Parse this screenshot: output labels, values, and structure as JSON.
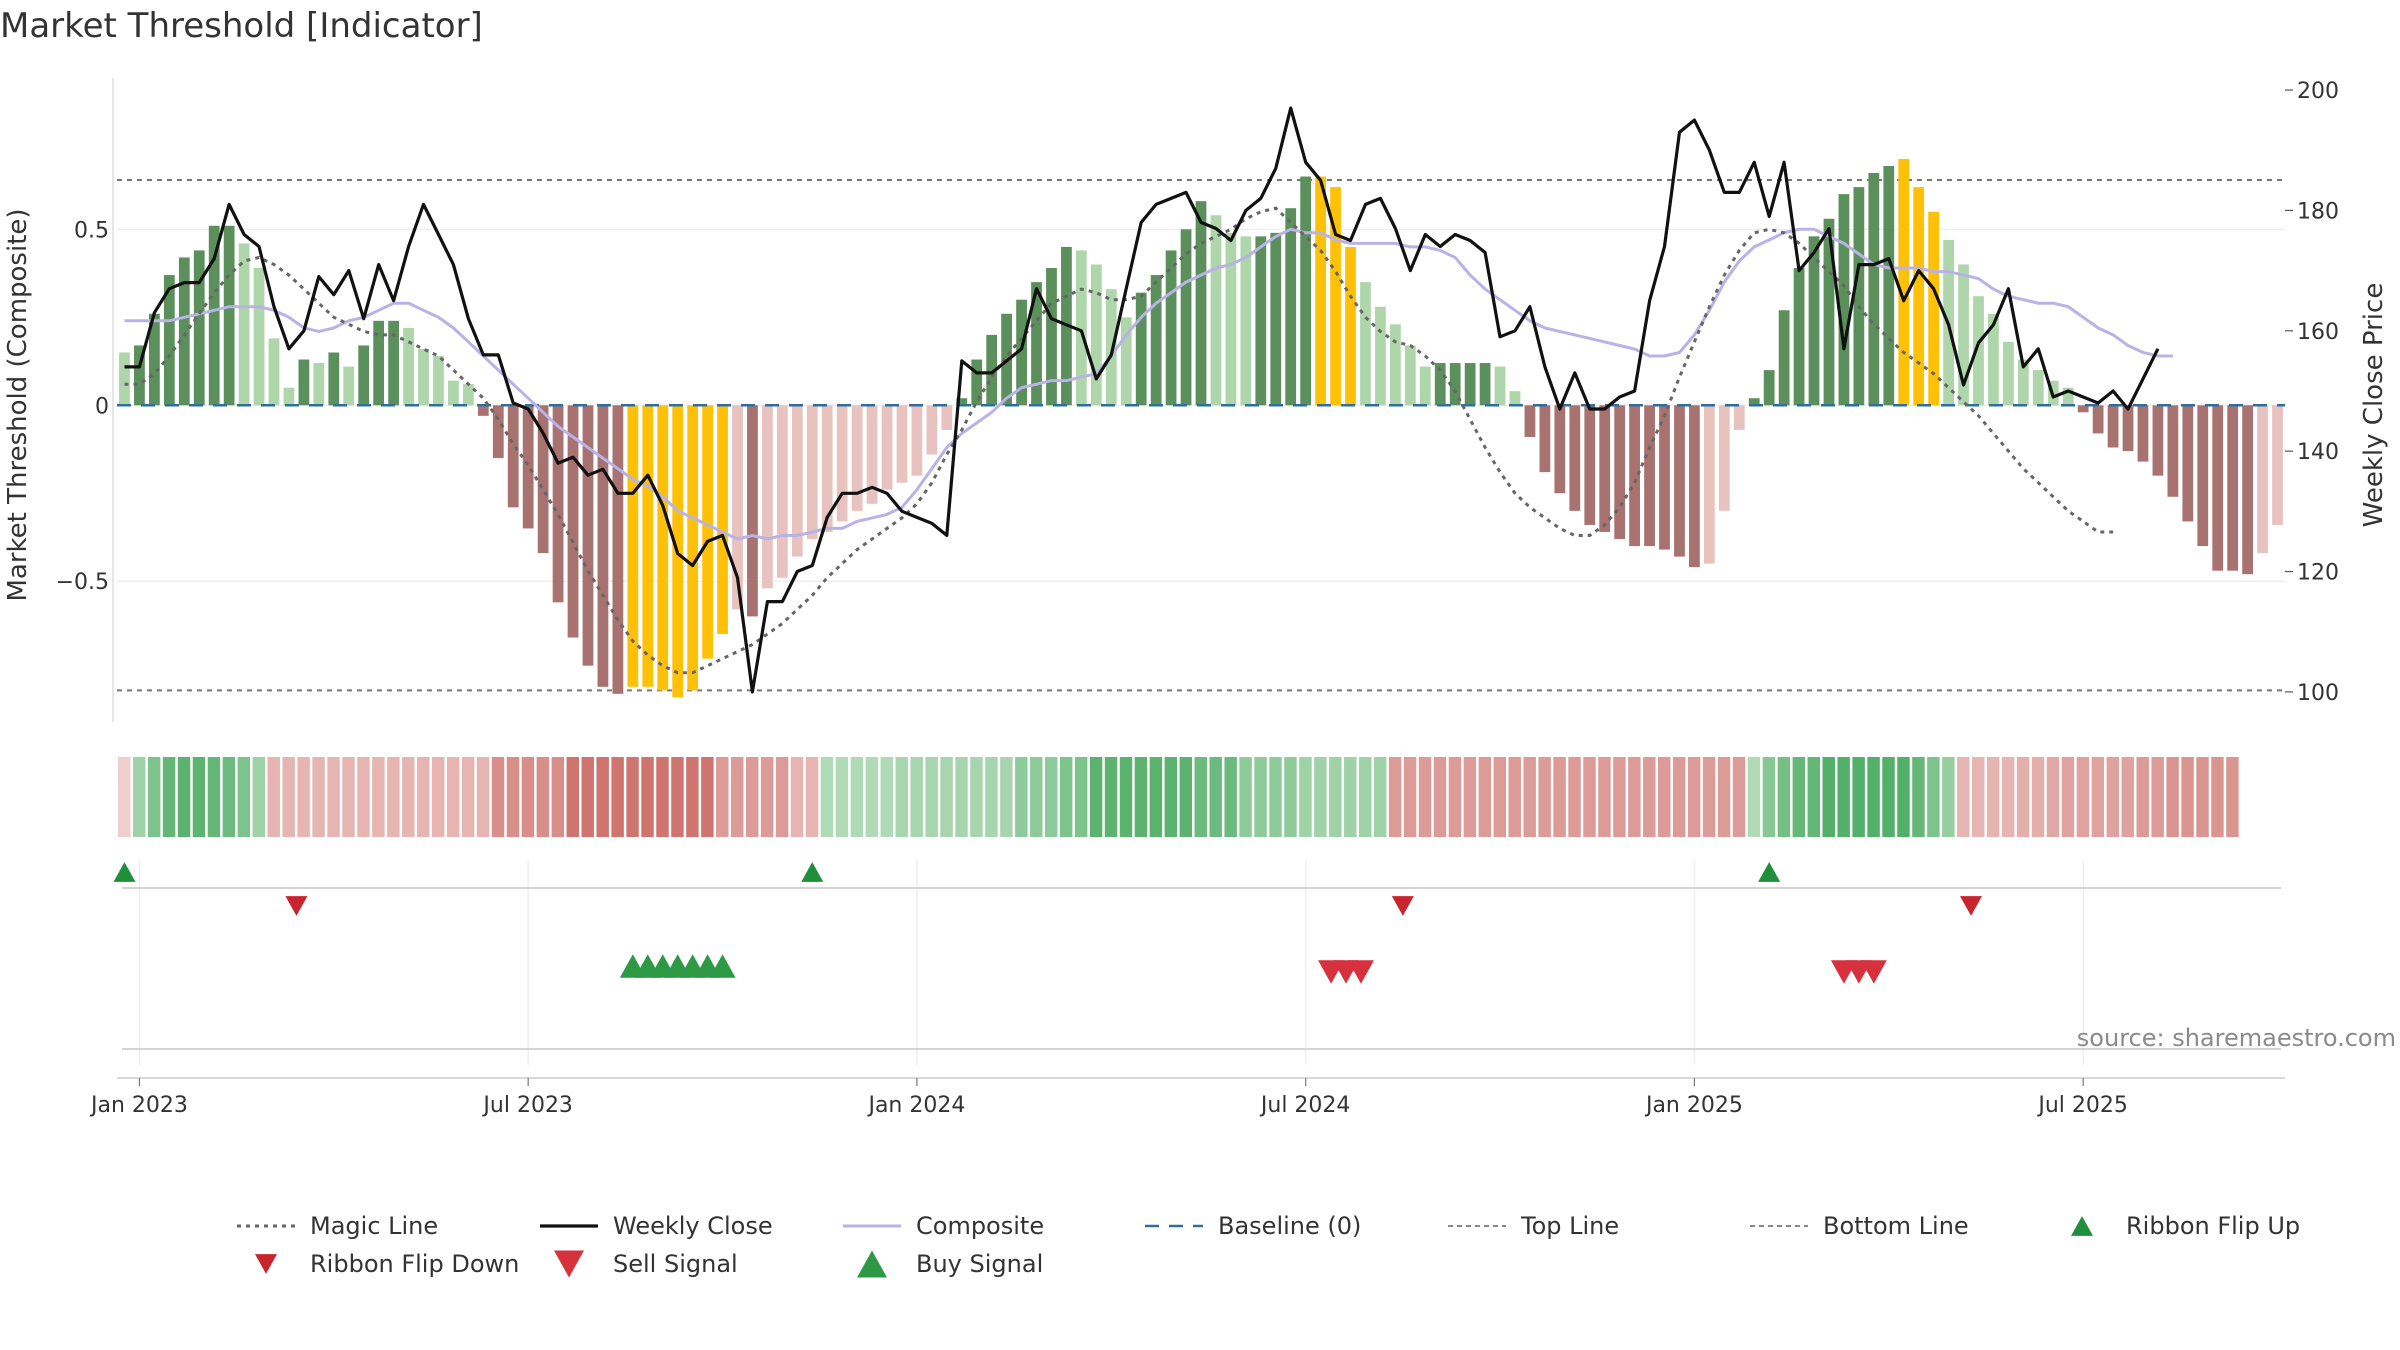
{
  "title": "Market Threshold [Indicator]",
  "source": "source: sharemaestro.com",
  "colors": {
    "strong_positive": "#5b8f5b",
    "weak_positive": "#aed6aa",
    "strong_negative": "#a87270",
    "weak_negative": "#e8c2be",
    "extreme": "#ffc107",
    "close": "#111111",
    "composite": "#b9b2e6",
    "magic": "#666666",
    "baseline": "#2f6f9f",
    "threshold": "#777777",
    "buy": "#2e9944",
    "sell": "#d6313c",
    "flip_up": "#1f8f3a",
    "flip_down": "#c9252e"
  },
  "chart_data": {
    "type": "bar",
    "ylabel": "Market Threshold (Composite)",
    "y2label": "Weekly Close Price",
    "ylim": [
      -0.9,
      0.93
    ],
    "y2lim": [
      95,
      202
    ],
    "yticks": [
      {
        "value": 0.5,
        "label": "0.5"
      },
      {
        "value": 0,
        "label": "0"
      },
      {
        "value": -0.5,
        "label": "−0.5"
      }
    ],
    "y2ticks": [
      {
        "value": 200,
        "label": "200"
      },
      {
        "value": 180,
        "label": "180"
      },
      {
        "value": 160,
        "label": "160"
      },
      {
        "value": 140,
        "label": "140"
      },
      {
        "value": 120,
        "label": "120"
      },
      {
        "value": 100,
        "label": "100"
      }
    ],
    "xticks": [
      {
        "week": 1.5,
        "label": "Jan 2023"
      },
      {
        "week": 27.5,
        "label": "Jul 2023"
      },
      {
        "week": 53.5,
        "label": "Jan 2024"
      },
      {
        "week": 79.5,
        "label": "Jul 2024"
      },
      {
        "week": 105.5,
        "label": "Jan 2025"
      },
      {
        "week": 131.5,
        "label": "Jul 2025"
      }
    ],
    "grid": true,
    "top_line": 0.64,
    "bottom_line": -0.81,
    "baseline": 0,
    "bars": [
      0.15,
      0.17,
      0.26,
      0.37,
      0.42,
      0.44,
      0.51,
      0.51,
      0.46,
      0.39,
      0.19,
      0.05,
      0.13,
      0.12,
      0.15,
      0.11,
      0.17,
      0.24,
      0.24,
      0.22,
      0.16,
      0.14,
      0.07,
      0.06,
      -0.03,
      -0.15,
      -0.29,
      -0.35,
      -0.42,
      -0.56,
      -0.66,
      -0.74,
      -0.8,
      -0.82,
      -0.8,
      -0.8,
      -0.81,
      -0.83,
      -0.81,
      -0.72,
      -0.65,
      -0.58,
      -0.6,
      -0.52,
      -0.49,
      -0.43,
      -0.38,
      -0.36,
      -0.33,
      -0.3,
      -0.28,
      -0.24,
      -0.22,
      -0.2,
      -0.14,
      -0.07,
      0.02,
      0.13,
      0.2,
      0.26,
      0.3,
      0.35,
      0.39,
      0.45,
      0.44,
      0.4,
      0.33,
      0.25,
      0.32,
      0.37,
      0.44,
      0.5,
      0.58,
      0.54,
      0.49,
      0.48,
      0.48,
      0.49,
      0.56,
      0.65,
      0.65,
      0.62,
      0.45,
      0.35,
      0.28,
      0.23,
      0.17,
      0.11,
      0.12,
      0.12,
      0.12,
      0.12,
      0.11,
      0.04,
      -0.09,
      -0.19,
      -0.25,
      -0.3,
      -0.34,
      -0.36,
      -0.38,
      -0.4,
      -0.4,
      -0.41,
      -0.43,
      -0.46,
      -0.45,
      -0.3,
      -0.07,
      0.02,
      0.1,
      0.27,
      0.39,
      0.48,
      0.53,
      0.6,
      0.62,
      0.66,
      0.68,
      0.7,
      0.62,
      0.55,
      0.47,
      0.4,
      0.31,
      0.26,
      0.18,
      0.13,
      0.1,
      0.07,
      0.05,
      -0.02,
      -0.08,
      -0.12,
      -0.13,
      -0.16,
      -0.2,
      -0.26,
      -0.33,
      -0.4,
      -0.47,
      -0.47,
      -0.48,
      -0.42,
      -0.34
    ],
    "close": [
      154,
      154,
      163,
      167,
      168,
      168,
      172,
      181,
      176,
      174,
      164,
      157,
      160,
      169,
      166,
      170,
      162,
      171,
      165,
      174,
      181,
      176,
      171,
      162,
      156,
      156,
      148,
      147,
      143,
      138,
      139,
      136,
      137,
      133,
      133,
      136,
      131,
      123,
      121,
      125,
      126,
      119,
      100,
      115,
      115,
      120,
      121,
      129,
      133,
      133,
      134,
      133,
      130,
      129,
      128,
      126,
      155,
      153,
      153,
      155,
      157,
      167,
      162,
      161,
      160,
      152,
      156,
      167,
      178,
      181,
      182,
      183,
      178,
      177,
      175,
      180,
      182,
      187,
      197,
      188,
      185,
      176,
      175,
      181,
      182,
      177,
      170,
      176,
      174,
      176,
      175,
      173,
      159,
      160,
      164,
      154,
      147,
      153,
      147,
      147,
      149,
      150,
      165,
      174,
      193,
      195,
      190,
      183,
      183,
      188,
      179,
      188,
      170,
      173,
      177,
      157,
      171,
      171,
      172,
      165,
      170,
      167,
      161,
      151,
      158,
      161,
      167,
      154,
      157,
      149,
      150,
      149,
      148,
      150,
      147,
      152,
      157
    ],
    "composite": [
      0.24,
      0.24,
      0.24,
      0.24,
      0.25,
      0.26,
      0.27,
      0.28,
      0.28,
      0.28,
      0.27,
      0.25,
      0.22,
      0.21,
      0.22,
      0.24,
      0.25,
      0.27,
      0.29,
      0.29,
      0.27,
      0.25,
      0.22,
      0.18,
      0.14,
      0.1,
      0.06,
      0.02,
      -0.02,
      -0.06,
      -0.09,
      -0.12,
      -0.15,
      -0.18,
      -0.21,
      -0.23,
      -0.26,
      -0.3,
      -0.32,
      -0.34,
      -0.36,
      -0.38,
      -0.37,
      -0.38,
      -0.37,
      -0.37,
      -0.36,
      -0.35,
      -0.35,
      -0.33,
      -0.32,
      -0.31,
      -0.29,
      -0.24,
      -0.18,
      -0.12,
      -0.08,
      -0.05,
      -0.02,
      0.02,
      0.05,
      0.06,
      0.07,
      0.07,
      0.08,
      0.09,
      0.14,
      0.2,
      0.25,
      0.29,
      0.32,
      0.35,
      0.37,
      0.39,
      0.4,
      0.42,
      0.45,
      0.48,
      0.5,
      0.49,
      0.49,
      0.47,
      0.46,
      0.46,
      0.46,
      0.46,
      0.45,
      0.45,
      0.44,
      0.42,
      0.37,
      0.33,
      0.3,
      0.27,
      0.24,
      0.22,
      0.21,
      0.2,
      0.19,
      0.18,
      0.17,
      0.16,
      0.14,
      0.14,
      0.15,
      0.2,
      0.27,
      0.35,
      0.41,
      0.45,
      0.47,
      0.49,
      0.5,
      0.5,
      0.48,
      0.46,
      0.43,
      0.4,
      0.39,
      0.39,
      0.39,
      0.38,
      0.38,
      0.37,
      0.36,
      0.33,
      0.31,
      0.3,
      0.29,
      0.29,
      0.28,
      0.25,
      0.22,
      0.2,
      0.17,
      0.15,
      0.14,
      0.14
    ],
    "magic": [
      0.06,
      0.06,
      0.09,
      0.14,
      0.2,
      0.26,
      0.32,
      0.37,
      0.41,
      0.42,
      0.4,
      0.37,
      0.33,
      0.29,
      0.25,
      0.23,
      0.21,
      0.2,
      0.2,
      0.18,
      0.16,
      0.14,
      0.1,
      0.06,
      0.02,
      -0.04,
      -0.11,
      -0.17,
      -0.24,
      -0.31,
      -0.39,
      -0.47,
      -0.54,
      -0.61,
      -0.67,
      -0.71,
      -0.74,
      -0.76,
      -0.76,
      -0.74,
      -0.72,
      -0.7,
      -0.68,
      -0.65,
      -0.62,
      -0.58,
      -0.54,
      -0.49,
      -0.45,
      -0.41,
      -0.38,
      -0.35,
      -0.32,
      -0.28,
      -0.22,
      -0.14,
      -0.07,
      0.01,
      0.08,
      0.14,
      0.19,
      0.24,
      0.29,
      0.31,
      0.33,
      0.32,
      0.3,
      0.3,
      0.31,
      0.35,
      0.39,
      0.43,
      0.46,
      0.48,
      0.5,
      0.53,
      0.55,
      0.56,
      0.52,
      0.48,
      0.44,
      0.38,
      0.31,
      0.25,
      0.21,
      0.18,
      0.17,
      0.14,
      0.1,
      0.04,
      -0.04,
      -0.12,
      -0.19,
      -0.25,
      -0.29,
      -0.32,
      -0.35,
      -0.37,
      -0.37,
      -0.34,
      -0.29,
      -0.22,
      -0.12,
      -0.03,
      0.08,
      0.18,
      0.28,
      0.37,
      0.44,
      0.49,
      0.5,
      0.49,
      0.46,
      0.42,
      0.38,
      0.34,
      0.28,
      0.23,
      0.19,
      0.15,
      0.12,
      0.09,
      0.05,
      0.01,
      -0.03,
      -0.08,
      -0.13,
      -0.18,
      -0.22,
      -0.26,
      -0.3,
      -0.33,
      -0.36,
      -0.36
    ],
    "extreme_weeks": [
      34,
      35,
      36,
      37,
      38,
      39,
      40,
      80,
      81,
      82,
      119,
      120,
      121
    ],
    "ribbon": [
      -0.1,
      0.4,
      0.6,
      0.75,
      0.8,
      0.8,
      0.75,
      0.7,
      0.6,
      0.4,
      -0.3,
      -0.3,
      -0.3,
      -0.3,
      -0.3,
      -0.3,
      -0.3,
      -0.3,
      -0.3,
      -0.3,
      -0.3,
      -0.3,
      -0.3,
      -0.3,
      -0.3,
      -0.6,
      -0.6,
      -0.6,
      -0.6,
      -0.6,
      -0.8,
      -0.8,
      -0.8,
      -0.8,
      -0.8,
      -0.8,
      -0.8,
      -0.8,
      -0.8,
      -0.8,
      -0.5,
      -0.5,
      -0.5,
      -0.5,
      -0.5,
      -0.3,
      -0.3,
      0.3,
      0.3,
      0.3,
      0.3,
      0.3,
      0.35,
      0.35,
      0.35,
      0.35,
      0.35,
      0.35,
      0.35,
      0.35,
      0.5,
      0.5,
      0.5,
      0.6,
      0.6,
      0.8,
      0.8,
      0.8,
      0.8,
      0.8,
      0.8,
      0.8,
      0.7,
      0.7,
      0.7,
      0.5,
      0.5,
      0.5,
      0.5,
      0.4,
      0.4,
      0.4,
      0.4,
      0.4,
      0.4,
      -0.5,
      -0.5,
      -0.5,
      -0.5,
      -0.5,
      -0.5,
      -0.5,
      -0.5,
      -0.5,
      -0.5,
      -0.5,
      -0.5,
      -0.5,
      -0.5,
      -0.5,
      -0.5,
      -0.5,
      -0.5,
      -0.5,
      -0.5,
      -0.5,
      -0.5,
      -0.5,
      -0.5,
      0.3,
      0.55,
      0.65,
      0.75,
      0.75,
      0.85,
      0.85,
      0.85,
      0.85,
      0.85,
      0.85,
      0.75,
      0.6,
      0.45,
      -0.3,
      -0.3,
      -0.3,
      -0.3,
      -0.35,
      -0.35,
      -0.4,
      -0.45,
      -0.45,
      -0.45,
      -0.45,
      -0.45,
      -0.5,
      -0.5,
      -0.55,
      -0.55,
      -0.55,
      -0.55,
      -0.55
    ],
    "ribbon_flip_up_weeks": [
      0.5,
      46.5,
      110.5
    ],
    "ribbon_flip_down_weeks": [
      12,
      86,
      124
    ],
    "buy_signal_weeks": [
      34.5,
      35.5,
      36.5,
      37.5,
      38.5,
      39.5,
      40.5
    ],
    "sell_signal_weeks": [
      81.2,
      82.2,
      83.2,
      115.5,
      116.5,
      117.5
    ],
    "legend": [
      {
        "label": "Magic Line",
        "style": "dotted-line",
        "color": "#666666"
      },
      {
        "label": "Weekly Close",
        "style": "solid-line",
        "color": "#111111"
      },
      {
        "label": "Composite",
        "style": "solid-line-light",
        "color": "#b9b2e6"
      },
      {
        "label": "Baseline (0)",
        "style": "dashed-line",
        "color": "#2f6f9f"
      },
      {
        "label": "Top Line",
        "style": "dotted-line-light",
        "color": "#888888"
      },
      {
        "label": "Bottom Line",
        "style": "dotted-line-light",
        "color": "#888888"
      },
      {
        "label": "Ribbon Flip Up",
        "style": "triangle-up-small",
        "color": "#1f8f3a"
      },
      {
        "label": "Ribbon Flip Down",
        "style": "triangle-down-small",
        "color": "#c9252e"
      },
      {
        "label": "Sell Signal",
        "style": "triangle-down",
        "color": "#d6313c"
      },
      {
        "label": "Buy Signal",
        "style": "triangle-up",
        "color": "#2e9944"
      }
    ]
  }
}
